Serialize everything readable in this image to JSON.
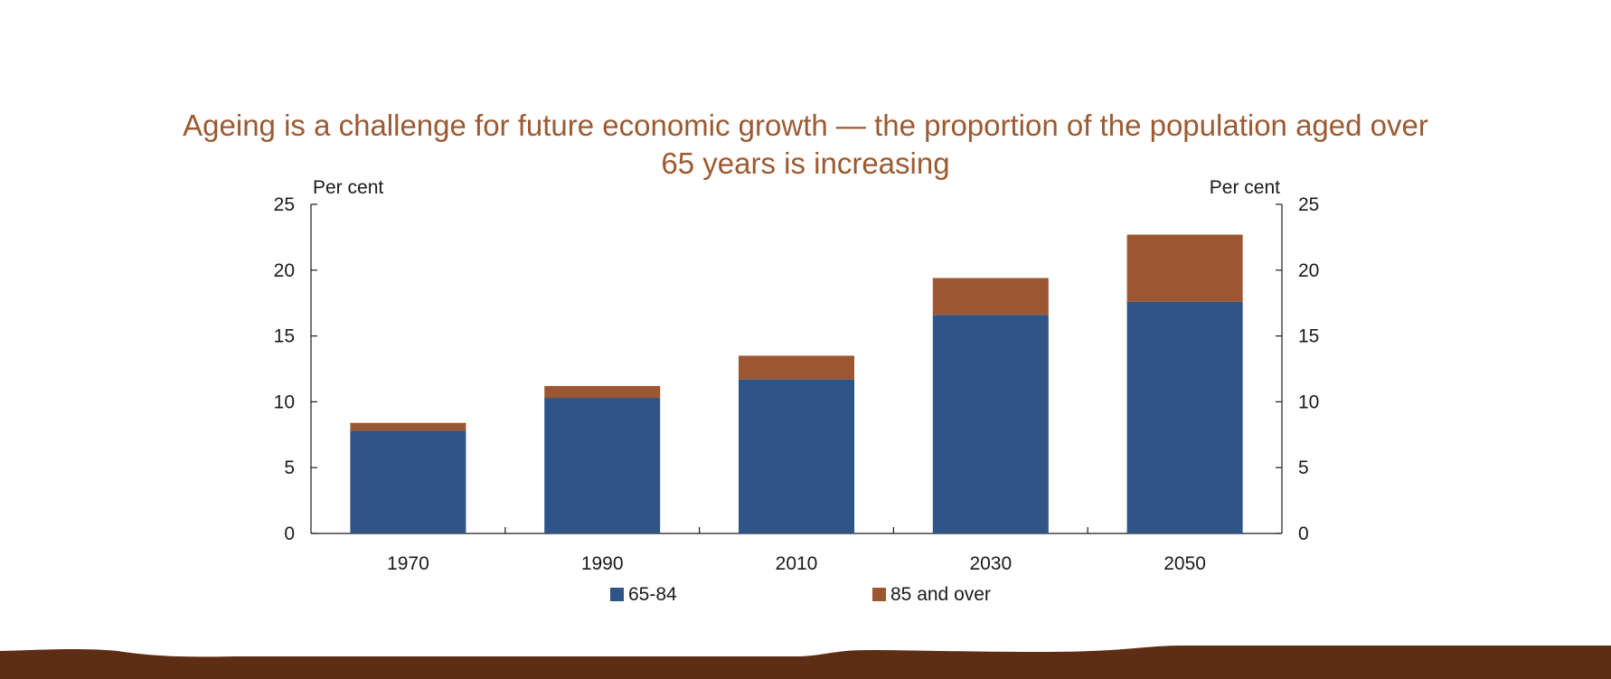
{
  "slide": {
    "title": "Ageing is a challenge for future economic growth — the proportion of the population aged over 65 years is increasing"
  },
  "colors": {
    "title": "#9b5a32",
    "series_65_84": "#2f5587",
    "series_85_over": "#9b5732",
    "footer": "#5e2d16"
  },
  "chart_data": {
    "type": "bar",
    "stacked": true,
    "categories": [
      "1970",
      "1990",
      "2010",
      "2030",
      "2050"
    ],
    "series": [
      {
        "name": "65-84",
        "values": [
          7.8,
          10.3,
          11.7,
          16.6,
          17.6
        ]
      },
      {
        "name": "85 and over",
        "values": [
          0.6,
          0.9,
          1.8,
          2.8,
          5.1
        ]
      }
    ],
    "ylabel_left": "Per cent",
    "ylabel_right": "Per cent",
    "ylim": [
      0,
      25
    ],
    "yticks": [
      "0",
      "5",
      "10",
      "15",
      "20",
      "25"
    ],
    "grid": false,
    "legend_position": "bottom"
  }
}
